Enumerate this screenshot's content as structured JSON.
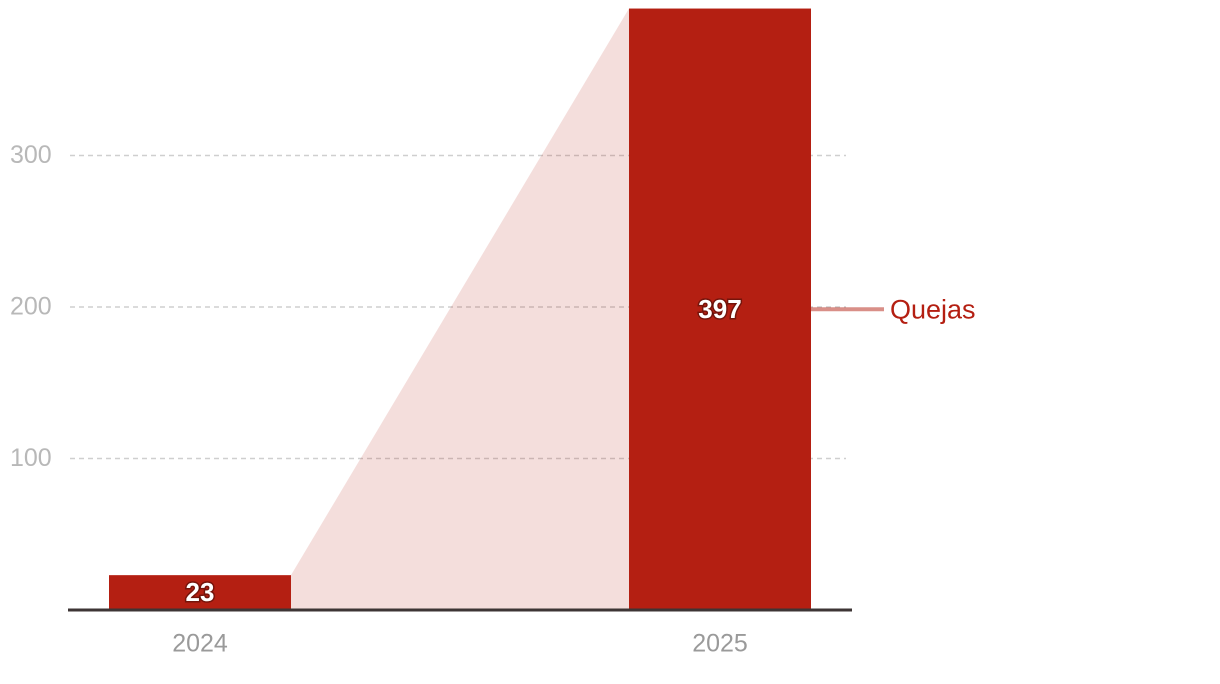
{
  "chart_data": {
    "type": "bar",
    "categories": [
      "2024",
      "2025"
    ],
    "series": [
      {
        "name": "Quejas",
        "color": "#b41f12",
        "values": [
          23,
          397
        ]
      }
    ],
    "ylim": [
      0,
      400
    ],
    "yticks": [
      100,
      200,
      300
    ],
    "grid": true
  }
}
